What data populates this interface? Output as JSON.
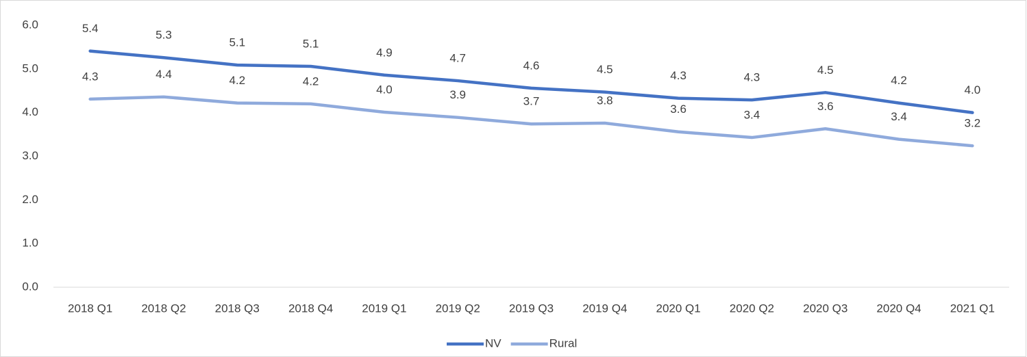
{
  "chart_data": {
    "type": "line",
    "categories": [
      "2018 Q1",
      "2018 Q2",
      "2018 Q3",
      "2018 Q4",
      "2019 Q1",
      "2019 Q2",
      "2019 Q3",
      "2019 Q4",
      "2020 Q1",
      "2020 Q2",
      "2020 Q3",
      "2020 Q4",
      "2021 Q1"
    ],
    "series": [
      {
        "name": "NV",
        "color": "#4472c4",
        "values": [
          5.41,
          5.26,
          5.09,
          5.06,
          4.86,
          4.73,
          4.56,
          4.47,
          4.33,
          4.29,
          4.46,
          4.22,
          4.0
        ],
        "value_labels": [
          "5.4",
          "5.3",
          "5.1",
          "5.1",
          "4.9",
          "4.7",
          "4.6",
          "4.5",
          "4.3",
          "4.3",
          "4.5",
          "4.2",
          "4.0"
        ]
      },
      {
        "name": "Rural",
        "color": "#8faadc",
        "values": [
          4.31,
          4.36,
          4.22,
          4.2,
          4.01,
          3.89,
          3.74,
          3.76,
          3.56,
          3.43,
          3.63,
          3.39,
          3.24
        ],
        "value_labels": [
          "4.3",
          "4.4",
          "4.2",
          "4.2",
          "4.0",
          "3.9",
          "3.7",
          "3.8",
          "3.6",
          "3.4",
          "3.6",
          "3.4",
          "3.2"
        ]
      }
    ],
    "ylim": [
      0,
      6
    ],
    "yticks": [
      {
        "value": 0,
        "label": "0.0"
      },
      {
        "value": 1,
        "label": "1.0"
      },
      {
        "value": 2,
        "label": "2.0"
      },
      {
        "value": 3,
        "label": "3.0"
      },
      {
        "value": 4,
        "label": "4.0"
      },
      {
        "value": 5,
        "label": "5.0"
      },
      {
        "value": 6,
        "label": "6.0"
      }
    ],
    "grid": false,
    "legend": "bottom"
  }
}
